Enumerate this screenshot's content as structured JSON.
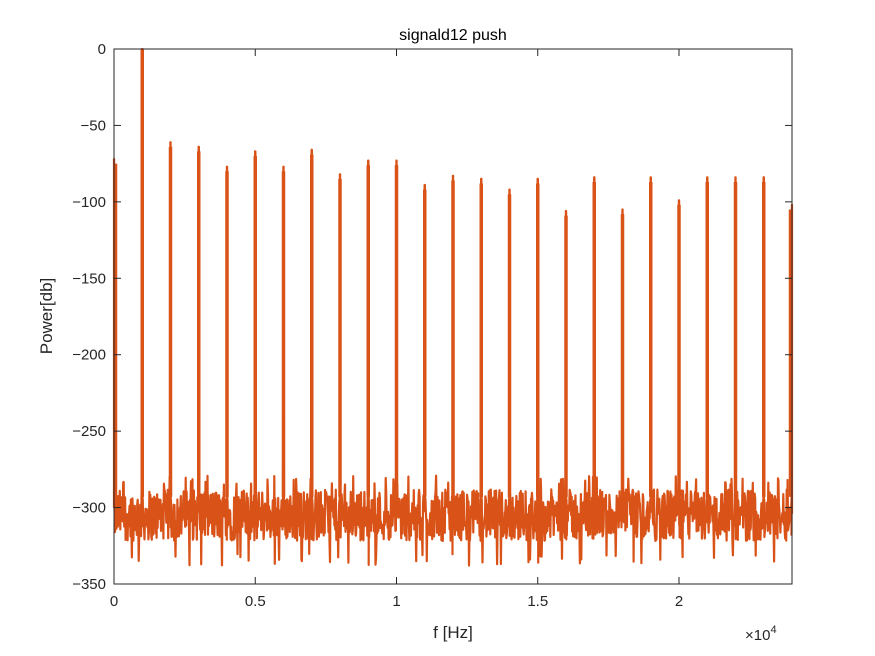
{
  "chart_data": {
    "type": "line",
    "title": "signald12 push",
    "xlabel": "f [Hz]",
    "ylabel": "Power[db]",
    "x_multiplier_label": "×10",
    "x_multiplier_exponent": "4",
    "xlim": [
      0,
      24000
    ],
    "ylim": [
      -350,
      0
    ],
    "x_ticks": [
      0,
      5000,
      10000,
      15000,
      20000
    ],
    "x_tick_labels": [
      "0",
      "0.5",
      "1",
      "1.5",
      "2"
    ],
    "y_ticks": [
      0,
      -50,
      -100,
      -150,
      -200,
      -250,
      -300,
      -350
    ],
    "y_tick_labels": [
      "0",
      "−50",
      "−100",
      "−150",
      "−200",
      "−250",
      "−300",
      "−350"
    ],
    "grid": false,
    "series": [
      {
        "color": "#d95319",
        "noise_floor_db": -305,
        "noise_range_db": [
          -330,
          -285
        ],
        "peaks": [
          {
            "x": 0,
            "y": -75
          },
          {
            "x": 1000,
            "y": 0
          },
          {
            "x": 2000,
            "y": -64
          },
          {
            "x": 3000,
            "y": -67
          },
          {
            "x": 4000,
            "y": -80
          },
          {
            "x": 5000,
            "y": -70
          },
          {
            "x": 6000,
            "y": -80
          },
          {
            "x": 7000,
            "y": -69
          },
          {
            "x": 8000,
            "y": -85
          },
          {
            "x": 9000,
            "y": -76
          },
          {
            "x": 10000,
            "y": -76
          },
          {
            "x": 11000,
            "y": -92
          },
          {
            "x": 12000,
            "y": -86
          },
          {
            "x": 13000,
            "y": -88
          },
          {
            "x": 14000,
            "y": -95
          },
          {
            "x": 15000,
            "y": -88
          },
          {
            "x": 16000,
            "y": -109
          },
          {
            "x": 17000,
            "y": -87
          },
          {
            "x": 18000,
            "y": -108
          },
          {
            "x": 19000,
            "y": -87
          },
          {
            "x": 20000,
            "y": -102
          },
          {
            "x": 21000,
            "y": -87
          },
          {
            "x": 22000,
            "y": -87
          },
          {
            "x": 23000,
            "y": -87
          },
          {
            "x": 24000,
            "y": -105
          }
        ]
      }
    ]
  }
}
